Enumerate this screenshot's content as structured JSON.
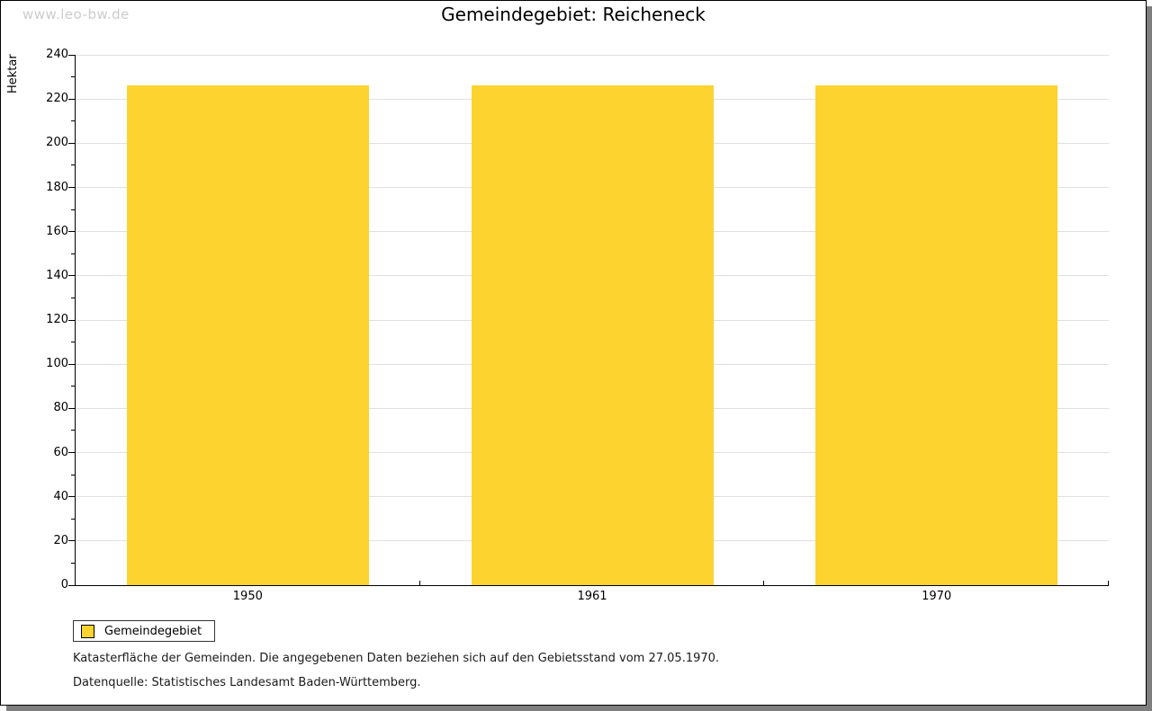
{
  "watermark": "www.leo-bw.de",
  "chart_data": {
    "type": "bar",
    "title": "Gemeindegebiet: Reicheneck",
    "ylabel": "Hektar",
    "xlabel": "",
    "categories": [
      "1950",
      "1961",
      "1970"
    ],
    "values": [
      226,
      226,
      226
    ],
    "ylim": [
      0,
      240
    ],
    "ytick_step": 20,
    "minor_tick_step": 10,
    "grid": true,
    "legend_position": "bottom-left",
    "bar_color": "#FCD32F",
    "grid_color": "#E0E0E0",
    "axis_color": "#000000",
    "legend": [
      {
        "label": "Gemeindegebiet",
        "color": "#FCD32F"
      }
    ]
  },
  "footer": {
    "line1": "Katasterfläche der Gemeinden. Die angegebenen Daten beziehen sich auf den Gebietsstand vom 27.05.1970.",
    "line2": "Datenquelle: Statistisches Landesamt Baden-Württemberg."
  }
}
